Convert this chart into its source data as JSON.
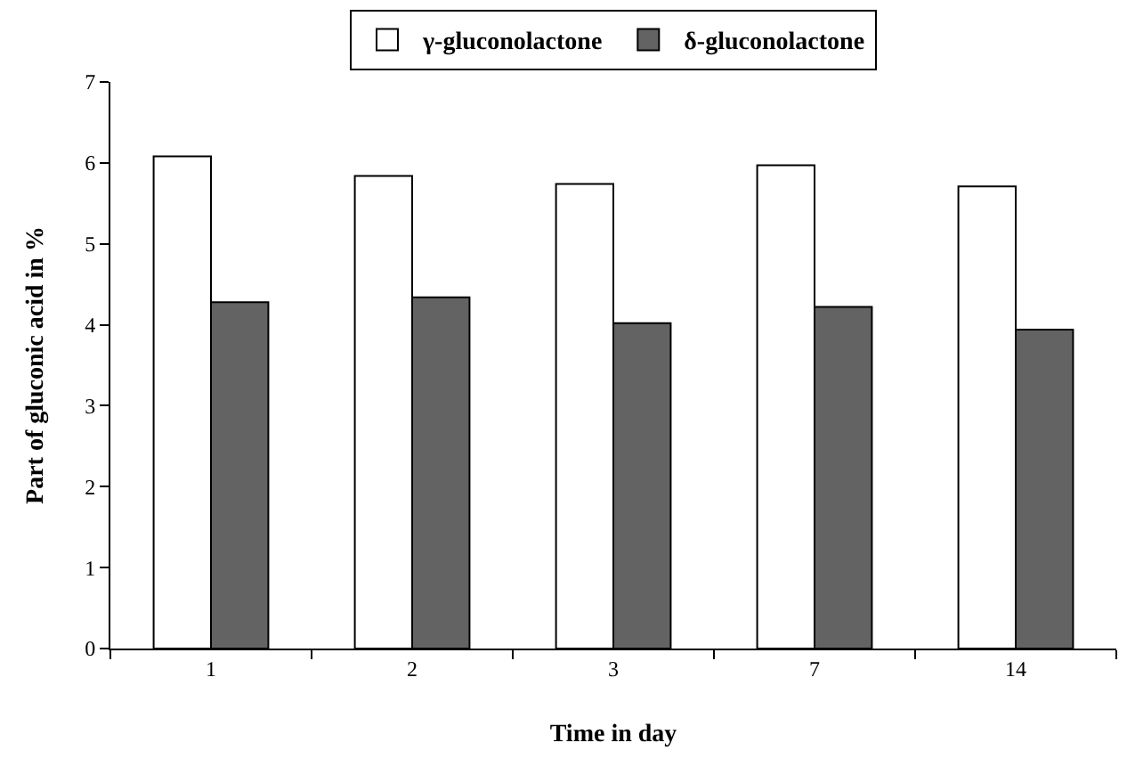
{
  "chart_data": {
    "type": "bar",
    "xlabel": "Time in day",
    "ylabel": "Part of gluconic acid in %",
    "categories": [
      "1",
      "2",
      "3",
      "7",
      "14"
    ],
    "series": [
      {
        "name": "γ-gluconolactone",
        "color": "#ffffff",
        "values": [
          6.08,
          5.84,
          5.74,
          5.97,
          5.71
        ]
      },
      {
        "name": "δ-gluconolactone",
        "color": "#636363",
        "values": [
          4.28,
          4.34,
          4.02,
          4.22,
          3.94
        ]
      }
    ],
    "ylim": [
      0,
      7
    ],
    "yticks": [
      0,
      1,
      2,
      3,
      4,
      5,
      6,
      7
    ],
    "grid": false,
    "legend": "top"
  }
}
